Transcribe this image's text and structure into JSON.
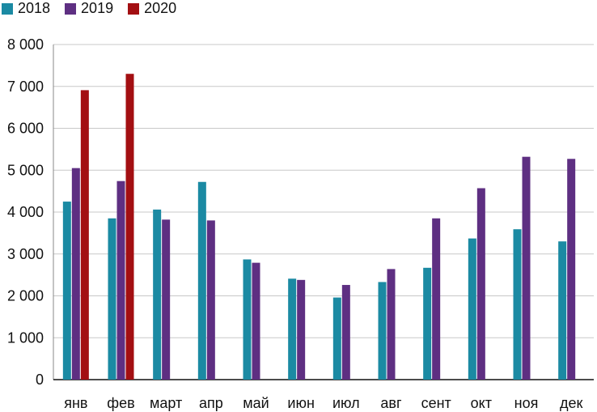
{
  "chart_data": {
    "type": "bar",
    "title": "",
    "xlabel": "",
    "ylabel": "",
    "categories": [
      "янв",
      "фев",
      "март",
      "апр",
      "май",
      "июн",
      "июл",
      "авг",
      "сент",
      "окт",
      "ноя",
      "дек"
    ],
    "series": [
      {
        "name": "2018",
        "color": "#1b8aa3",
        "values": [
          4250,
          3850,
          4060,
          4720,
          2870,
          2410,
          1960,
          2330,
          2670,
          3370,
          3590,
          3300
        ]
      },
      {
        "name": "2019",
        "color": "#5e2f82",
        "values": [
          5050,
          4740,
          3820,
          3800,
          2790,
          2380,
          2260,
          2640,
          3850,
          4570,
          5320,
          5270
        ]
      },
      {
        "name": "2020",
        "color": "#a30f12",
        "values": [
          6910,
          7300,
          null,
          null,
          null,
          null,
          null,
          null,
          null,
          null,
          null,
          null
        ]
      }
    ],
    "ylim": [
      0,
      8000
    ],
    "yticks": [
      0,
      1000,
      2000,
      3000,
      4000,
      5000,
      6000,
      7000,
      8000
    ],
    "ytick_labels": [
      "0",
      "1 000",
      "2 000",
      "3 000",
      "4 000",
      "5 000",
      "6 000",
      "7 000",
      "8 000"
    ],
    "grid": true,
    "legend_position": "top-left"
  }
}
